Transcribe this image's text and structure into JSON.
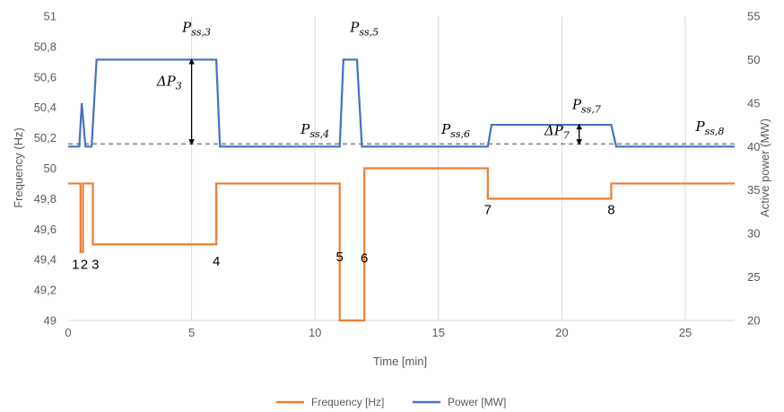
{
  "chart_data": {
    "type": "line",
    "xlabel": "Time [min]",
    "ylabel_left": "Frequency (Hz)",
    "ylabel_right": "Active power (MW)",
    "xlim": [
      0,
      27
    ],
    "ylim_left": [
      49,
      51
    ],
    "ylim_right": [
      20,
      55
    ],
    "x_ticks": [
      "0",
      "5",
      "10",
      "15",
      "20",
      "25"
    ],
    "x_tick_values": [
      0,
      5,
      10,
      15,
      20,
      25
    ],
    "y_left_ticks": [
      "49",
      "49,2",
      "49,4",
      "49,6",
      "49,8",
      "50",
      "50,2",
      "50,4",
      "50,6",
      "50,8",
      "51"
    ],
    "y_left_tick_values": [
      49,
      49.2,
      49.4,
      49.6,
      49.8,
      50,
      50.2,
      50.4,
      50.6,
      50.8,
      51
    ],
    "y_right_ticks": [
      "20",
      "25",
      "30",
      "35",
      "40",
      "45",
      "50",
      "55"
    ],
    "y_right_tick_values": [
      20,
      25,
      30,
      35,
      40,
      45,
      50,
      55
    ],
    "grid": "vertical",
    "legend_position": "bottom",
    "colors": {
      "frequency": "#ED7D31",
      "power": "#4472C4",
      "reference": "#7F7F7F",
      "grid": "#D9D9D9"
    },
    "series": [
      {
        "name": "Frequency [Hz]",
        "axis": "left",
        "x": [
          0,
          0.5,
          0.5,
          0.6,
          0.6,
          0.7,
          0.7,
          1.0,
          1.0,
          6.0,
          6.0,
          11.0,
          11.0,
          12.0,
          12.0,
          17.0,
          17.0,
          22.0,
          22.0,
          27.0
        ],
        "y": [
          49.9,
          49.9,
          49.45,
          49.45,
          49.9,
          49.9,
          49.9,
          49.9,
          49.5,
          49.5,
          49.9,
          49.9,
          49.0,
          49.0,
          50.0,
          50.0,
          49.8,
          49.8,
          49.9,
          49.9
        ]
      },
      {
        "name": "Power [MW]",
        "axis": "right",
        "x": [
          0,
          0.45,
          0.55,
          0.7,
          0.85,
          0.95,
          1.15,
          6.0,
          6.15,
          11.0,
          11.15,
          11.7,
          11.9,
          17.0,
          17.15,
          22.0,
          22.2,
          27.0
        ],
        "y": [
          40,
          40,
          45,
          40,
          40,
          40,
          50,
          50,
          40,
          40,
          50,
          50,
          40,
          40,
          42.5,
          42.5,
          40,
          40
        ]
      }
    ],
    "reference_line": {
      "axis": "right",
      "value": 40.3
    },
    "annotations": {
      "markers": [
        {
          "label": "1",
          "x": 0.3,
          "y": 49.37
        },
        {
          "label": "2",
          "x": 0.65,
          "y": 49.37
        },
        {
          "label": "3",
          "x": 1.1,
          "y": 49.37
        },
        {
          "label": "4",
          "x": 6.0,
          "y": 49.39
        },
        {
          "label": "5",
          "x": 11.0,
          "y": 49.42
        },
        {
          "label": "6",
          "x": 12.0,
          "y": 49.41
        },
        {
          "label": "7",
          "x": 17.0,
          "y": 49.73
        },
        {
          "label": "8",
          "x": 22.0,
          "y": 49.73
        }
      ],
      "pss_labels": [
        {
          "base": "P",
          "sub": "ss,3",
          "x": 5.2,
          "y": 53.2
        },
        {
          "base": "P",
          "sub": "ss,4",
          "x": 10.0,
          "y": 41.5
        },
        {
          "base": "P",
          "sub": "ss,5",
          "x": 12.0,
          "y": 53.2
        },
        {
          "base": "P",
          "sub": "ss,6",
          "x": 15.7,
          "y": 41.5
        },
        {
          "base": "P",
          "sub": "ss,7",
          "x": 21.0,
          "y": 44.3
        },
        {
          "base": "P",
          "sub": "ss,8",
          "x": 26.0,
          "y": 41.8
        }
      ],
      "deltas": [
        {
          "base": "ΔP",
          "sub": "3",
          "x_text": 4.1,
          "y_text": 47.0,
          "x_arrow": 5.0,
          "from": 40.3,
          "to": 50
        },
        {
          "base": "ΔP",
          "sub": "7",
          "x_text": 19.8,
          "y_text": 41.3,
          "x_arrow": 20.7,
          "from": 40.3,
          "to": 42.5
        }
      ]
    }
  }
}
